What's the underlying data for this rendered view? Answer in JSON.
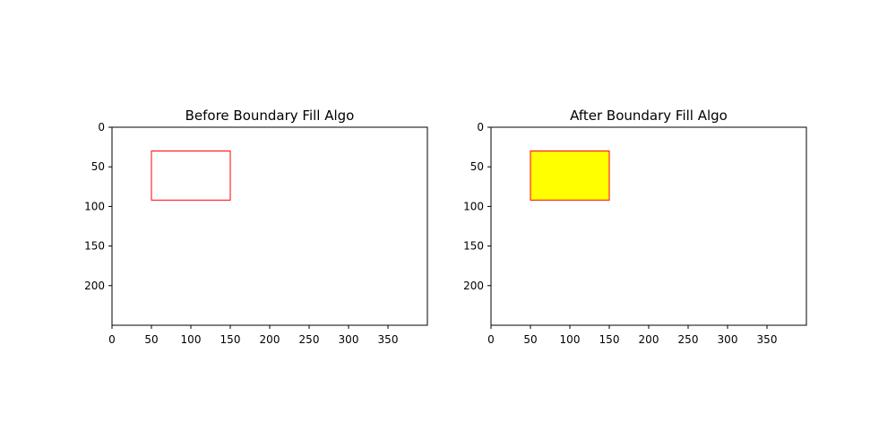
{
  "chart_data": [
    {
      "type": "image",
      "title": "Before Boundary Fill Algo",
      "xlim": [
        0,
        400
      ],
      "ylim": [
        250,
        0
      ],
      "xticks": [
        0,
        50,
        100,
        150,
        200,
        250,
        300,
        350
      ],
      "yticks": [
        0,
        50,
        100,
        150,
        200
      ],
      "xtick_labels": [
        "0",
        "50",
        "100",
        "150",
        "200",
        "250",
        "300",
        "350"
      ],
      "ytick_labels": [
        "0",
        "50",
        "100",
        "150",
        "200"
      ],
      "rect": {
        "x0": 50,
        "y0": 30,
        "x1": 150,
        "y1": 92
      },
      "boundary_color": "#ff0000",
      "fill_color": "#ffffff",
      "background_color": "#ffffff",
      "filled": false
    },
    {
      "type": "image",
      "title": "After Boundary Fill Algo",
      "xlim": [
        0,
        400
      ],
      "ylim": [
        250,
        0
      ],
      "xticks": [
        0,
        50,
        100,
        150,
        200,
        250,
        300,
        350
      ],
      "yticks": [
        0,
        50,
        100,
        150,
        200
      ],
      "xtick_labels": [
        "0",
        "50",
        "100",
        "150",
        "200",
        "250",
        "300",
        "350"
      ],
      "ytick_labels": [
        "0",
        "50",
        "100",
        "150",
        "200"
      ],
      "rect": {
        "x0": 50,
        "y0": 30,
        "x1": 150,
        "y1": 92
      },
      "boundary_color": "#ff0000",
      "fill_color": "#ffff00",
      "background_color": "#ffffff",
      "filled": true
    }
  ]
}
